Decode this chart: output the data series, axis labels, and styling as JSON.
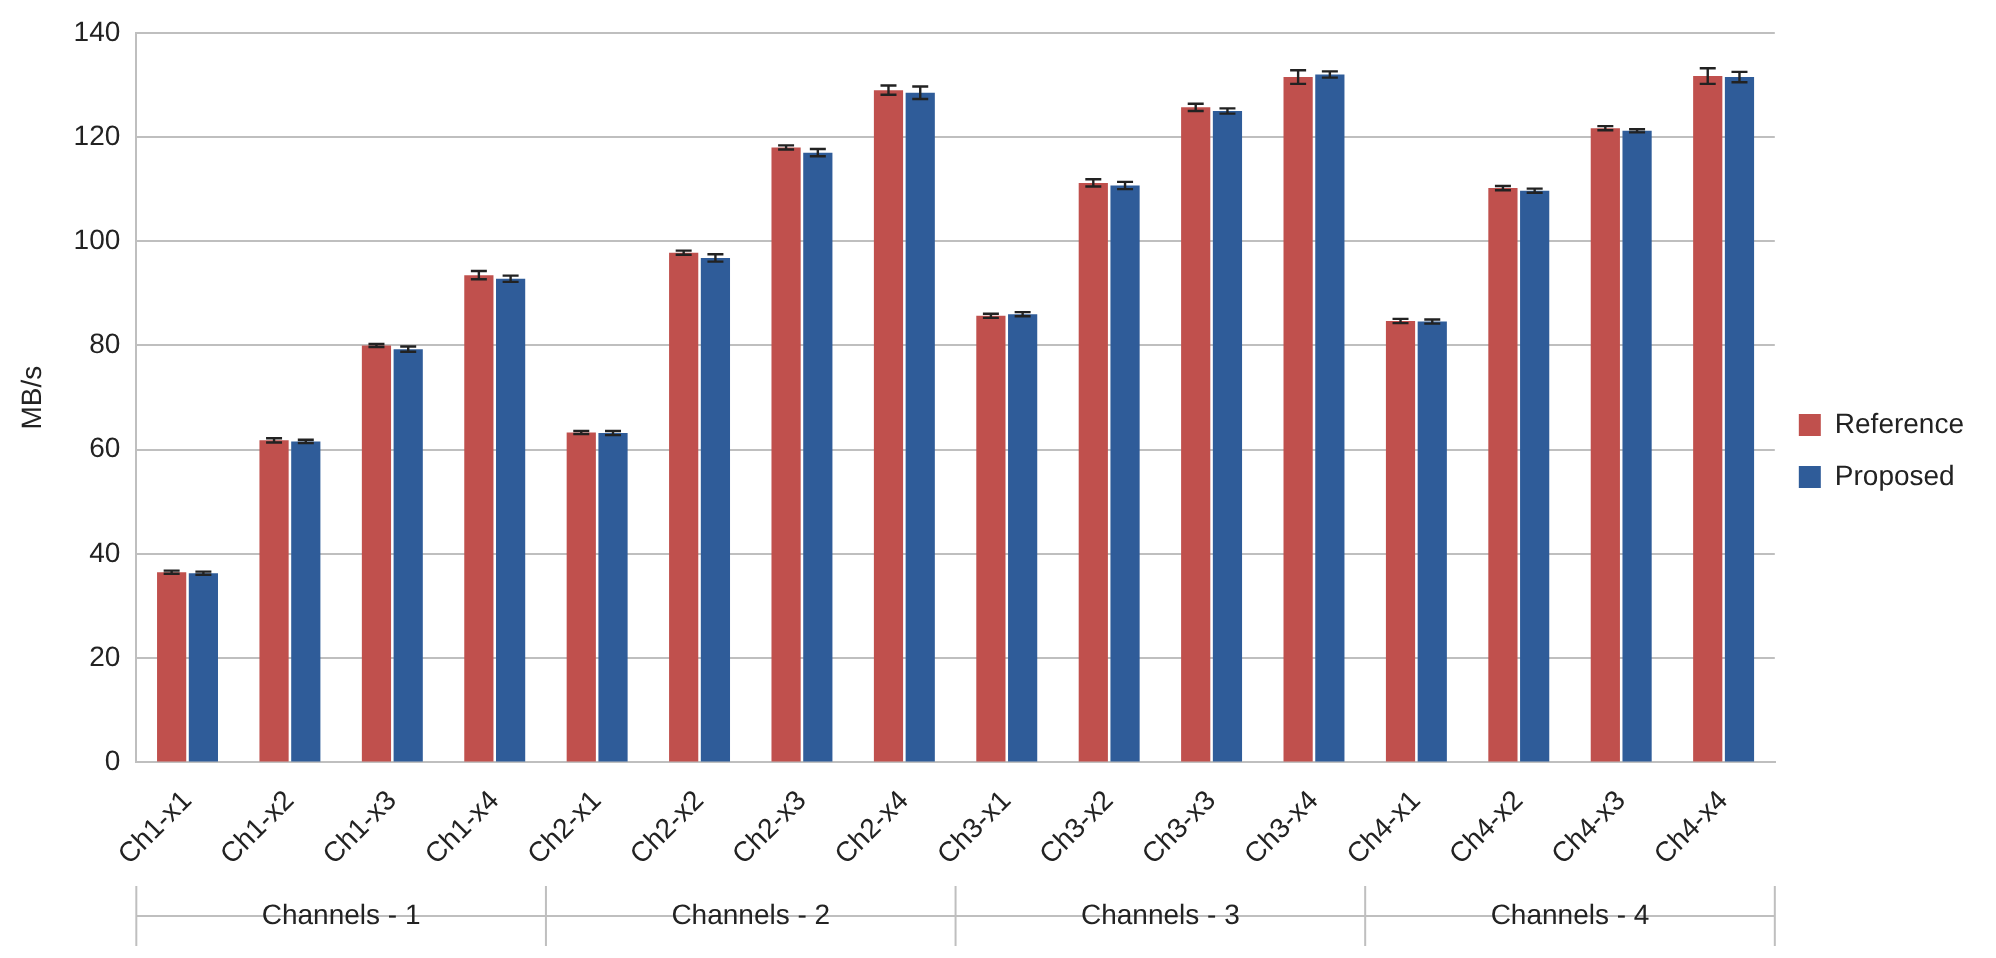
{
  "chart_data": {
    "type": "bar",
    "ylabel": "MB/s",
    "categories": [
      "Ch1-x1",
      "Ch1-x2",
      "Ch1-x3",
      "Ch1-x4",
      "Ch2-x1",
      "Ch2-x2",
      "Ch2-x3",
      "Ch2-x4",
      "Ch3-x1",
      "Ch3-x2",
      "Ch3-x3",
      "Ch3-x4",
      "Ch4-x1",
      "Ch4-x2",
      "Ch4-x3",
      "Ch4-x4"
    ],
    "series": [
      {
        "name": "Reference",
        "color": "#c0504d",
        "values": [
          36.5,
          61.8,
          80,
          93.5,
          63.3,
          97.8,
          118,
          129,
          85.7,
          111.2,
          125.7,
          131.5,
          84.7,
          110.2,
          121.7,
          131.7
        ],
        "errors": [
          0.3,
          0.4,
          0.3,
          0.8,
          0.3,
          0.4,
          0.4,
          0.9,
          0.4,
          0.7,
          0.7,
          1.3,
          0.4,
          0.4,
          0.4,
          1.5
        ]
      },
      {
        "name": "Proposed",
        "color": "#2f5c99",
        "values": [
          36.3,
          61.6,
          79.3,
          92.8,
          63.2,
          96.8,
          117,
          128.5,
          86,
          110.7,
          125,
          132,
          84.6,
          109.7,
          121.2,
          131.5
        ],
        "errors": [
          0.3,
          0.3,
          0.5,
          0.6,
          0.4,
          0.7,
          0.7,
          1.2,
          0.4,
          0.7,
          0.5,
          0.6,
          0.4,
          0.4,
          0.3,
          1.0
        ]
      }
    ],
    "ylim": [
      0,
      140
    ],
    "yticks": [
      0,
      20,
      40,
      60,
      80,
      100,
      120,
      140
    ],
    "grid": "y",
    "legend": "right",
    "annotations": [
      "Channels - 1",
      "Channels - 2",
      "Channels - 3",
      "Channels - 4"
    ]
  }
}
